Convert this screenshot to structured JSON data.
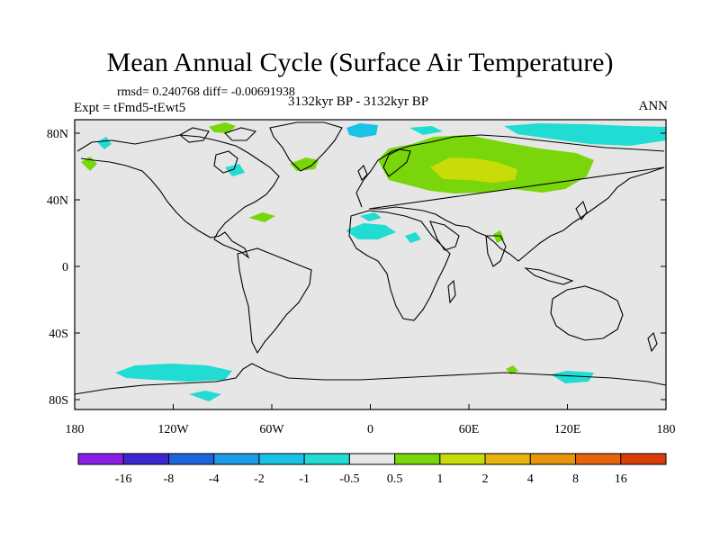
{
  "header": {
    "title": "Mean Annual Cycle (Surface Air Temperature)",
    "stats": "rmsd= 0.240768 diff= -0.00691938",
    "experiment": "Expt = tFmd5-tEwt5",
    "period": "3132kyr BP - 3132kyr BP",
    "season": "ANN"
  },
  "map": {
    "lat_labels": [
      "80N",
      "40N",
      "0",
      "40S",
      "80S"
    ],
    "lon_labels": [
      "180",
      "120W",
      "60W",
      "0",
      "60E",
      "120E",
      "180"
    ],
    "background_color": "#e6e6e6"
  },
  "colorbar": {
    "labels": [
      "-16",
      "-8",
      "-4",
      "-2",
      "-1",
      "-0.5",
      "0.5",
      "1",
      "2",
      "4",
      "8",
      "16"
    ],
    "colors": [
      "#8a1ee6",
      "#3c28d2",
      "#1e64dc",
      "#1e9be6",
      "#19c3e6",
      "#20dcd2",
      "#e6e6e6",
      "#78d60a",
      "#c8dc0a",
      "#e6b40a",
      "#e6960a",
      "#e6640a",
      "#dc3c0a"
    ]
  }
}
